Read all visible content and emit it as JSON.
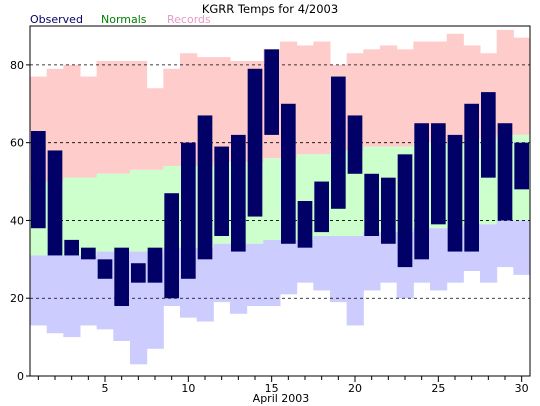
{
  "chart_data": {
    "type": "bar",
    "title": "KGRR Temps for 4/2003",
    "xlabel": "April 2003",
    "ylabel": "",
    "xlim": [
      0.5,
      30.5
    ],
    "ylim": [
      0,
      90
    ],
    "x_ticks": [
      5,
      10,
      15,
      20,
      25,
      30
    ],
    "y_ticks": [
      0,
      20,
      40,
      60,
      80
    ],
    "grid": "dashed horizontal at 20, 40, 60, 80",
    "legend": {
      "placement": "top-left, above plot",
      "entries": [
        {
          "label": "Observed",
          "color": "#000066"
        },
        {
          "label": "Normals",
          "color": "#008000"
        },
        {
          "label": "Records",
          "color": "#e899c8"
        }
      ]
    },
    "colors": {
      "observed": "#000066",
      "normals": "#ccffcc",
      "records": "#ffcccc",
      "record_low_band": "#ccccff"
    },
    "days": [
      1,
      2,
      3,
      4,
      5,
      6,
      7,
      8,
      9,
      10,
      11,
      12,
      13,
      14,
      15,
      16,
      17,
      18,
      19,
      20,
      21,
      22,
      23,
      24,
      25,
      26,
      27,
      28,
      29,
      30
    ],
    "series": [
      {
        "name": "Observed",
        "high": [
          63,
          58,
          35,
          33,
          30,
          33,
          29,
          33,
          47,
          60,
          67,
          59,
          62,
          79,
          84,
          70,
          45,
          50,
          77,
          67,
          52,
          51,
          57,
          65,
          65,
          62,
          70,
          73,
          65,
          60
        ],
        "low": [
          38,
          31,
          31,
          30,
          25,
          18,
          24,
          24,
          20,
          25,
          30,
          36,
          32,
          41,
          62,
          34,
          33,
          37,
          43,
          52,
          36,
          34,
          28,
          30,
          39,
          32,
          32,
          51,
          40,
          48
        ]
      },
      {
        "name": "Normals",
        "high": [
          50,
          50,
          51,
          51,
          52,
          52,
          53,
          53,
          54,
          54,
          54,
          55,
          55,
          55,
          56,
          56,
          57,
          57,
          58,
          58,
          59,
          59,
          59,
          60,
          60,
          60,
          61,
          61,
          62,
          62
        ],
        "low": [
          31,
          31,
          31,
          31,
          32,
          32,
          32,
          32,
          33,
          33,
          33,
          34,
          34,
          34,
          35,
          35,
          35,
          36,
          36,
          36,
          37,
          37,
          37,
          38,
          38,
          38,
          39,
          39,
          40,
          40
        ]
      },
      {
        "name": "Records",
        "high": [
          77,
          79,
          80,
          77,
          81,
          81,
          81,
          74,
          79,
          83,
          82,
          82,
          81,
          81,
          84,
          86,
          85,
          86,
          80,
          83,
          84,
          85,
          84,
          86,
          86,
          88,
          85,
          83,
          89,
          87
        ],
        "low": [
          13,
          11,
          10,
          13,
          12,
          9,
          3,
          7,
          18,
          15,
          14,
          19,
          16,
          18,
          18,
          21,
          24,
          22,
          19,
          13,
          22,
          24,
          20,
          24,
          22,
          24,
          27,
          24,
          28,
          26
        ]
      }
    ]
  }
}
